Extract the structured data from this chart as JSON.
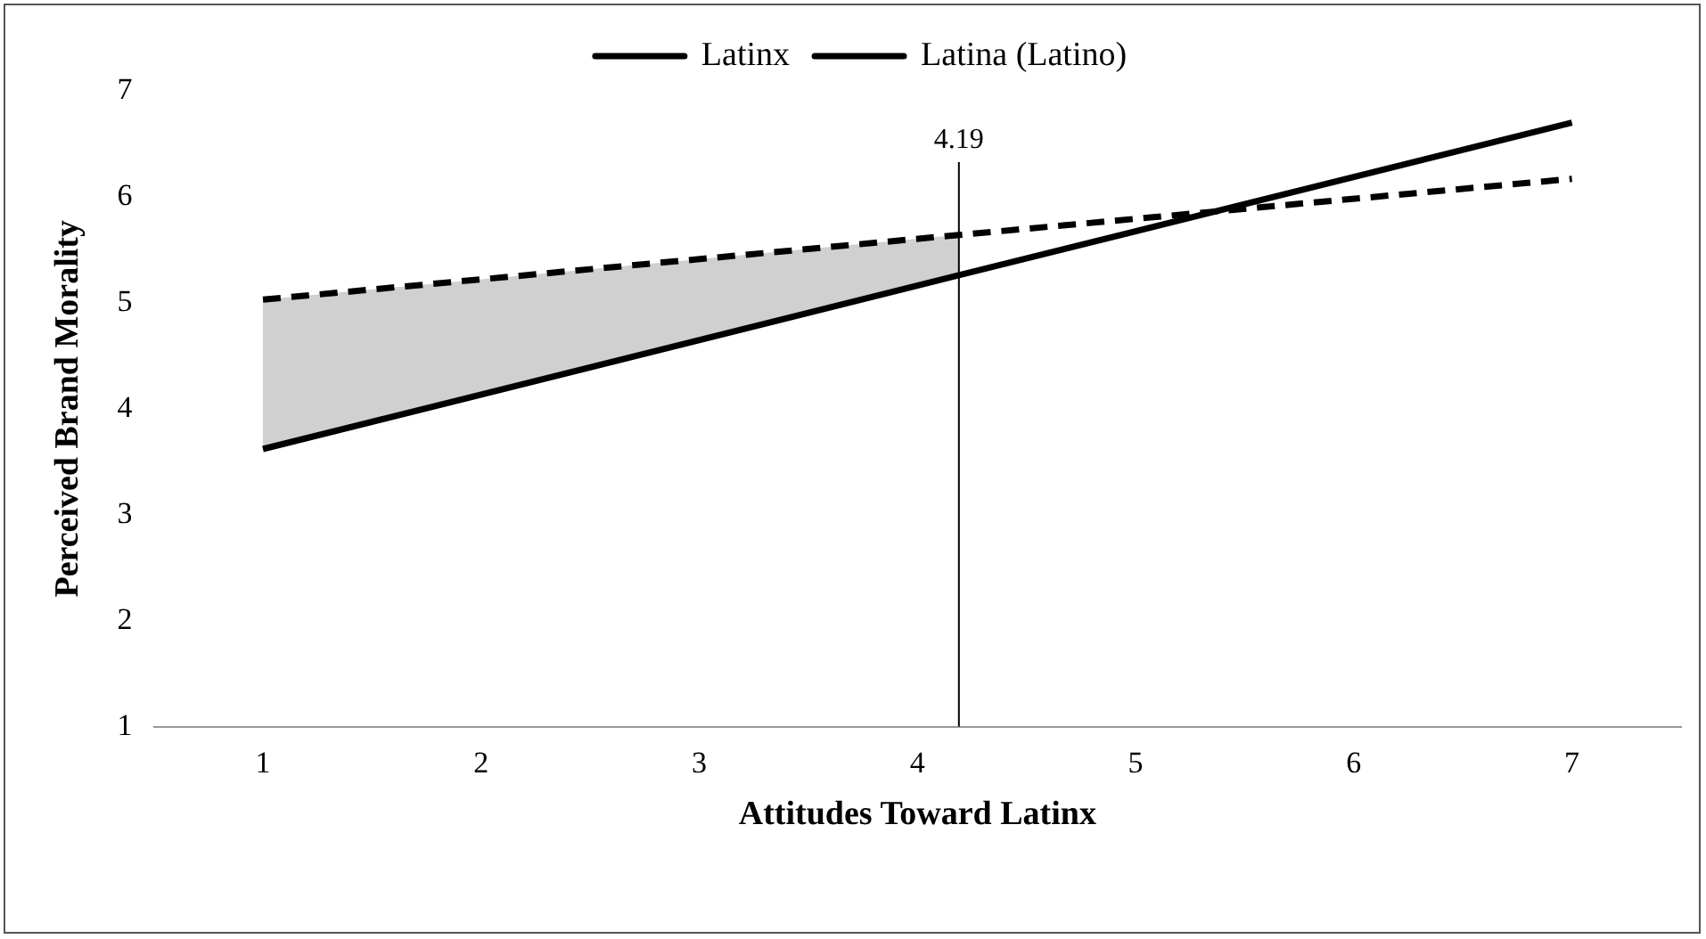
{
  "chart_data": {
    "type": "line",
    "xlabel": "Attitudes Toward Latinx",
    "ylabel": "Perceived Brand Morality",
    "xlim": [
      0.5,
      7.5
    ],
    "xticks": [
      1,
      2,
      3,
      4,
      5,
      6,
      7
    ],
    "ylim": [
      1,
      7
    ],
    "yticks": [
      1,
      2,
      3,
      4,
      5,
      6,
      7
    ],
    "series": [
      {
        "name": "Latinx",
        "color": "#000000",
        "line_style": "solid",
        "x": [
          1,
          4.19,
          7
        ],
        "values": [
          3.62,
          5.26,
          6.7
        ]
      },
      {
        "name": "Latina (Latino)",
        "color": "#000000",
        "line_style": "dashed",
        "x": [
          1,
          4.19,
          7
        ],
        "values": [
          5.03,
          5.64,
          6.17
        ],
        "lower": [
          3.62,
          5.26,
          null
        ],
        "upper": [
          5.03,
          5.64,
          null
        ]
      }
    ],
    "ref_lines": [
      {
        "axis": "x",
        "value": 4.19,
        "label": "4.19",
        "color": "#000000"
      }
    ],
    "grid": false,
    "legend": "top",
    "marker": "none"
  }
}
